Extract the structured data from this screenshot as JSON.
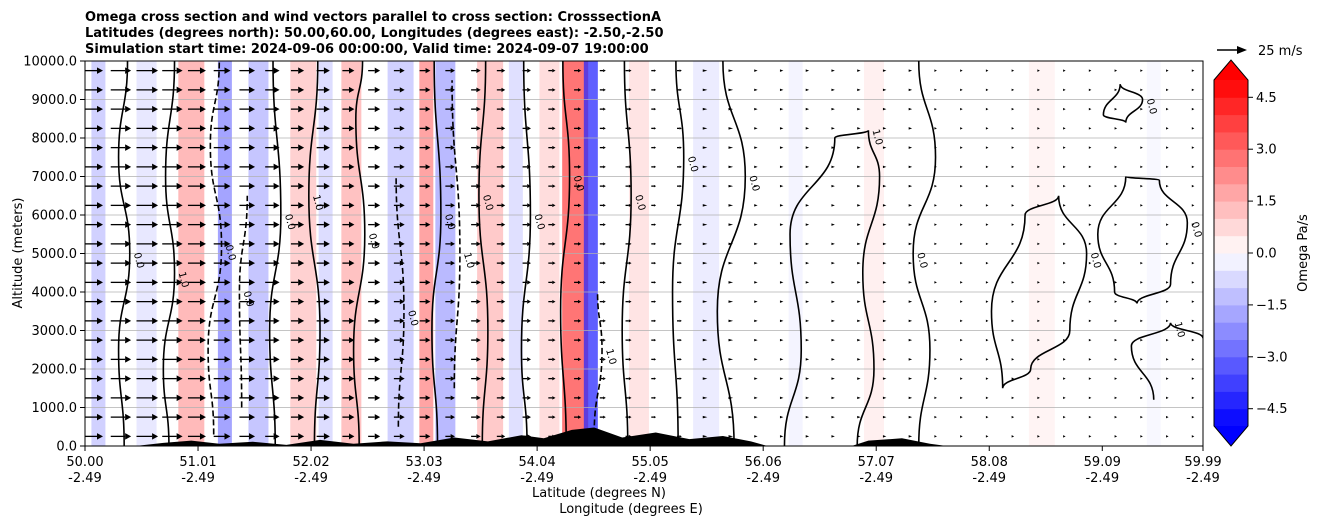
{
  "chart_data": {
    "type": "heatmap",
    "title_lines": [
      "Omega cross section and wind vectors parallel to cross section: CrosssectionA",
      "Latitudes (degrees north): 50.00,60.00, Longitudes (degrees east): -2.50,-2.50",
      "Simulation start time: 2024-09-06 00:00:00, Valid time: 2024-09-07 19:00:00"
    ],
    "xlabel": "Latitude (degrees N)",
    "xlabel2": "Longitude (degrees E)",
    "ylabel": "Altitude (meters)",
    "x_ticks": [
      "50.00",
      "51.01",
      "52.02",
      "53.03",
      "54.04",
      "55.05",
      "56.06",
      "57.07",
      "58.08",
      "59.09",
      "59.99"
    ],
    "x_ticks2": [
      "-2.49",
      "-2.49",
      "-2.49",
      "-2.49",
      "-2.49",
      "-2.49",
      "-2.49",
      "-2.49",
      "-2.49",
      "-2.49",
      "-2.49"
    ],
    "x_values": [
      50.0,
      51.01,
      52.02,
      53.03,
      54.04,
      55.05,
      56.06,
      57.07,
      58.08,
      59.09,
      59.99
    ],
    "xlim": [
      50.0,
      59.99
    ],
    "y_ticks": [
      "0.0",
      "1000.0",
      "2000.0",
      "3000.0",
      "4000.0",
      "5000.0",
      "6000.0",
      "7000.0",
      "8000.0",
      "9000.0",
      "10000.0"
    ],
    "y_values": [
      0,
      1000,
      2000,
      3000,
      4000,
      5000,
      6000,
      7000,
      8000,
      9000,
      10000
    ],
    "ylim": [
      0,
      10000
    ],
    "grid": "horizontal",
    "colorbar": {
      "label": "Omega Pa/s",
      "ticks": [
        "4.5",
        "3.0",
        "1.5",
        "0.0",
        "−1.5",
        "−3.0",
        "−4.5"
      ],
      "tick_values": [
        4.5,
        3.0,
        1.5,
        0.0,
        -1.5,
        -3.0,
        -4.5
      ],
      "range": [
        -5.0,
        5.0
      ],
      "extend": "both",
      "colormap": "bwr"
    },
    "quiver_key": "25 m/s",
    "contour_label": "0.0",
    "contour_label_extra": "1.0",
    "omega_columns": [
      {
        "lat": 50.12,
        "omega": -1.2
      },
      {
        "lat": 50.55,
        "omega": -0.6
      },
      {
        "lat": 50.95,
        "omega": 1.8
      },
      {
        "lat": 51.25,
        "omega": -2.4
      },
      {
        "lat": 51.55,
        "omega": -1.5
      },
      {
        "lat": 51.95,
        "omega": 1.2
      },
      {
        "lat": 52.15,
        "omega": -0.9
      },
      {
        "lat": 52.38,
        "omega": 1.6
      },
      {
        "lat": 52.82,
        "omega": -1.2
      },
      {
        "lat": 53.05,
        "omega": 2.4
      },
      {
        "lat": 53.22,
        "omega": -1.8
      },
      {
        "lat": 53.62,
        "omega": 1.4
      },
      {
        "lat": 53.85,
        "omega": -0.8
      },
      {
        "lat": 54.15,
        "omega": 0.9
      },
      {
        "lat": 54.38,
        "omega": 3.6
      },
      {
        "lat": 54.52,
        "omega": -4.2
      },
      {
        "lat": 54.95,
        "omega": 0.7
      },
      {
        "lat": 55.55,
        "omega": -0.5
      },
      {
        "lat": 56.35,
        "omega": -0.3
      },
      {
        "lat": 57.05,
        "omega": 0.4
      },
      {
        "lat": 58.55,
        "omega": 0.3
      },
      {
        "lat": 59.55,
        "omega": -0.2
      }
    ],
    "wind_columns": [
      {
        "lat": 50.0,
        "speed": 15
      },
      {
        "lat": 50.23,
        "speed": 17
      },
      {
        "lat": 50.46,
        "speed": 18
      },
      {
        "lat": 50.69,
        "speed": 17
      },
      {
        "lat": 50.92,
        "speed": 15
      },
      {
        "lat": 51.15,
        "speed": 14
      },
      {
        "lat": 51.38,
        "speed": 13
      },
      {
        "lat": 51.61,
        "speed": 12
      },
      {
        "lat": 51.84,
        "speed": 11
      },
      {
        "lat": 52.07,
        "speed": 11
      },
      {
        "lat": 52.3,
        "speed": 10
      },
      {
        "lat": 52.53,
        "speed": 10
      },
      {
        "lat": 52.76,
        "speed": 9
      },
      {
        "lat": 52.99,
        "speed": 9
      },
      {
        "lat": 53.22,
        "speed": 8
      },
      {
        "lat": 53.45,
        "speed": 8
      },
      {
        "lat": 53.68,
        "speed": 7
      },
      {
        "lat": 53.91,
        "speed": 7
      },
      {
        "lat": 54.14,
        "speed": 6
      },
      {
        "lat": 54.37,
        "speed": 6
      },
      {
        "lat": 54.6,
        "speed": 5
      },
      {
        "lat": 54.83,
        "speed": 5
      },
      {
        "lat": 55.06,
        "speed": 4
      },
      {
        "lat": 55.29,
        "speed": 4
      },
      {
        "lat": 55.52,
        "speed": 3
      },
      {
        "lat": 55.75,
        "speed": 3
      },
      {
        "lat": 55.98,
        "speed": 2
      },
      {
        "lat": 56.21,
        "speed": 2
      },
      {
        "lat": 56.44,
        "speed": 2
      },
      {
        "lat": 56.67,
        "speed": 2
      },
      {
        "lat": 56.9,
        "speed": 2
      },
      {
        "lat": 57.13,
        "speed": 2
      },
      {
        "lat": 57.36,
        "speed": 2
      },
      {
        "lat": 57.59,
        "speed": 1
      },
      {
        "lat": 57.82,
        "speed": 1
      },
      {
        "lat": 58.05,
        "speed": 1
      },
      {
        "lat": 58.28,
        "speed": 1
      },
      {
        "lat": 58.51,
        "speed": 1
      },
      {
        "lat": 58.74,
        "speed": 1
      },
      {
        "lat": 58.97,
        "speed": 1
      },
      {
        "lat": 59.2,
        "speed": 1
      },
      {
        "lat": 59.43,
        "speed": 1
      },
      {
        "lat": 59.66,
        "speed": 1
      },
      {
        "lat": 59.89,
        "speed": 1
      }
    ],
    "wind_levels": [
      250,
      750,
      1250,
      1750,
      2250,
      2750,
      3250,
      3750,
      4250,
      4750,
      5250,
      5750,
      6250,
      6750,
      7250,
      7750,
      8250,
      8750,
      9250,
      9750
    ],
    "terrain": [
      {
        "lat": 50.0,
        "alt": 0
      },
      {
        "lat": 50.45,
        "alt": 0
      },
      {
        "lat": 50.7,
        "alt": 80
      },
      {
        "lat": 50.95,
        "alt": 140
      },
      {
        "lat": 51.2,
        "alt": 60
      },
      {
        "lat": 51.5,
        "alt": 110
      },
      {
        "lat": 51.8,
        "alt": 30
      },
      {
        "lat": 52.1,
        "alt": 160
      },
      {
        "lat": 52.4,
        "alt": 60
      },
      {
        "lat": 52.7,
        "alt": 120
      },
      {
        "lat": 53.0,
        "alt": 70
      },
      {
        "lat": 53.3,
        "alt": 220
      },
      {
        "lat": 53.6,
        "alt": 120
      },
      {
        "lat": 53.9,
        "alt": 280
      },
      {
        "lat": 54.1,
        "alt": 200
      },
      {
        "lat": 54.35,
        "alt": 420
      },
      {
        "lat": 54.55,
        "alt": 480
      },
      {
        "lat": 54.8,
        "alt": 220
      },
      {
        "lat": 55.1,
        "alt": 350
      },
      {
        "lat": 55.4,
        "alt": 180
      },
      {
        "lat": 55.7,
        "alt": 260
      },
      {
        "lat": 55.95,
        "alt": 120
      },
      {
        "lat": 56.1,
        "alt": 0
      },
      {
        "lat": 56.85,
        "alt": 0
      },
      {
        "lat": 57.0,
        "alt": 140
      },
      {
        "lat": 57.3,
        "alt": 200
      },
      {
        "lat": 57.55,
        "alt": 60
      },
      {
        "lat": 57.7,
        "alt": 0
      },
      {
        "lat": 59.99,
        "alt": 0
      }
    ],
    "contours": [
      {
        "style": "solid",
        "points": [
          [
            50.35,
            0
          ],
          [
            50.3,
            2500
          ],
          [
            50.4,
            5000
          ],
          [
            50.3,
            7500
          ],
          [
            50.38,
            10000
          ]
        ]
      },
      {
        "style": "solid",
        "points": [
          [
            50.75,
            0
          ],
          [
            50.7,
            2000
          ],
          [
            50.8,
            4500
          ],
          [
            50.72,
            7000
          ],
          [
            50.8,
            10000
          ]
        ]
      },
      {
        "style": "dashed",
        "points": [
          [
            51.15,
            300
          ],
          [
            51.1,
            2500
          ],
          [
            51.22,
            5200
          ],
          [
            51.12,
            7800
          ],
          [
            51.2,
            10000
          ]
        ]
      },
      {
        "style": "dashed",
        "points": [
          [
            51.4,
            1000
          ],
          [
            51.38,
            4000
          ],
          [
            51.45,
            6500
          ]
        ]
      },
      {
        "style": "solid",
        "points": [
          [
            51.7,
            0
          ],
          [
            51.65,
            3000
          ],
          [
            51.75,
            6000
          ],
          [
            51.68,
            10000
          ]
        ]
      },
      {
        "style": "solid",
        "points": [
          [
            52.05,
            0
          ],
          [
            52.1,
            3000
          ],
          [
            52.0,
            6500
          ],
          [
            52.08,
            10000
          ]
        ]
      },
      {
        "style": "solid",
        "points": [
          [
            52.45,
            0
          ],
          [
            52.4,
            2500
          ],
          [
            52.5,
            5500
          ],
          [
            52.42,
            8500
          ],
          [
            52.48,
            10000
          ]
        ]
      },
      {
        "style": "dashed",
        "points": [
          [
            52.8,
            500
          ],
          [
            52.85,
            3500
          ],
          [
            52.78,
            7000
          ]
        ]
      },
      {
        "style": "solid",
        "points": [
          [
            53.15,
            0
          ],
          [
            53.1,
            3000
          ],
          [
            53.18,
            6000
          ],
          [
            53.12,
            10000
          ]
        ]
      },
      {
        "style": "dashed",
        "points": [
          [
            53.3,
            1500
          ],
          [
            53.35,
            5000
          ],
          [
            53.28,
            9500
          ]
        ]
      },
      {
        "style": "solid",
        "points": [
          [
            53.55,
            0
          ],
          [
            53.6,
            3000
          ],
          [
            53.52,
            6500
          ],
          [
            53.58,
            10000
          ]
        ]
      },
      {
        "style": "solid",
        "points": [
          [
            53.95,
            0
          ],
          [
            53.9,
            2500
          ],
          [
            53.98,
            6000
          ],
          [
            53.92,
            10000
          ]
        ]
      },
      {
        "style": "solid",
        "points": [
          [
            54.3,
            0
          ],
          [
            54.25,
            3500
          ],
          [
            54.33,
            7000
          ],
          [
            54.27,
            10000
          ]
        ]
      },
      {
        "style": "dashed",
        "points": [
          [
            54.55,
            300
          ],
          [
            54.62,
            2500
          ],
          [
            54.58,
            4000
          ]
        ]
      },
      {
        "style": "solid",
        "points": [
          [
            54.85,
            0
          ],
          [
            54.8,
            3000
          ],
          [
            54.88,
            6500
          ],
          [
            54.82,
            10000
          ]
        ]
      },
      {
        "style": "solid",
        "points": [
          [
            55.3,
            0
          ],
          [
            55.25,
            4000
          ],
          [
            55.35,
            7500
          ],
          [
            55.28,
            10000
          ]
        ]
      },
      {
        "style": "solid",
        "points": [
          [
            55.8,
            0
          ],
          [
            55.65,
            3500
          ],
          [
            55.9,
            7000
          ],
          [
            55.7,
            10000
          ]
        ]
      },
      {
        "style": "solid",
        "points": [
          [
            56.25,
            0
          ],
          [
            56.4,
            2500
          ],
          [
            56.3,
            5500
          ],
          [
            56.7,
            8000
          ],
          [
            57.0,
            8200
          ],
          [
            57.1,
            7000
          ],
          [
            56.95,
            4500
          ],
          [
            57.05,
            2000
          ],
          [
            56.9,
            0
          ]
        ]
      },
      {
        "style": "solid",
        "points": [
          [
            57.45,
            0
          ],
          [
            57.55,
            2500
          ],
          [
            57.4,
            5000
          ],
          [
            57.6,
            7500
          ],
          [
            57.45,
            10000
          ]
        ]
      },
      {
        "style": "solid",
        "points": [
          [
            58.2,
            1500
          ],
          [
            58.1,
            3500
          ],
          [
            58.4,
            6000
          ],
          [
            58.7,
            6500
          ],
          [
            58.95,
            5000
          ],
          [
            58.8,
            3000
          ],
          [
            58.45,
            2000
          ],
          [
            58.2,
            1500
          ]
        ]
      },
      {
        "style": "solid",
        "points": [
          [
            59.2,
            4000
          ],
          [
            59.05,
            5500
          ],
          [
            59.3,
            7000
          ],
          [
            59.6,
            6900
          ],
          [
            59.85,
            5800
          ],
          [
            59.7,
            4200
          ],
          [
            59.4,
            3700
          ],
          [
            59.2,
            4000
          ]
        ]
      },
      {
        "style": "solid",
        "points": [
          [
            59.55,
            1200
          ],
          [
            59.35,
            2600
          ],
          [
            59.7,
            3200
          ],
          [
            59.99,
            2800
          ]
        ]
      },
      {
        "style": "solid",
        "points": [
          [
            59.1,
            8600
          ],
          [
            59.25,
            9400
          ],
          [
            59.45,
            9000
          ],
          [
            59.3,
            8400
          ],
          [
            59.1,
            8600
          ]
        ]
      }
    ]
  }
}
